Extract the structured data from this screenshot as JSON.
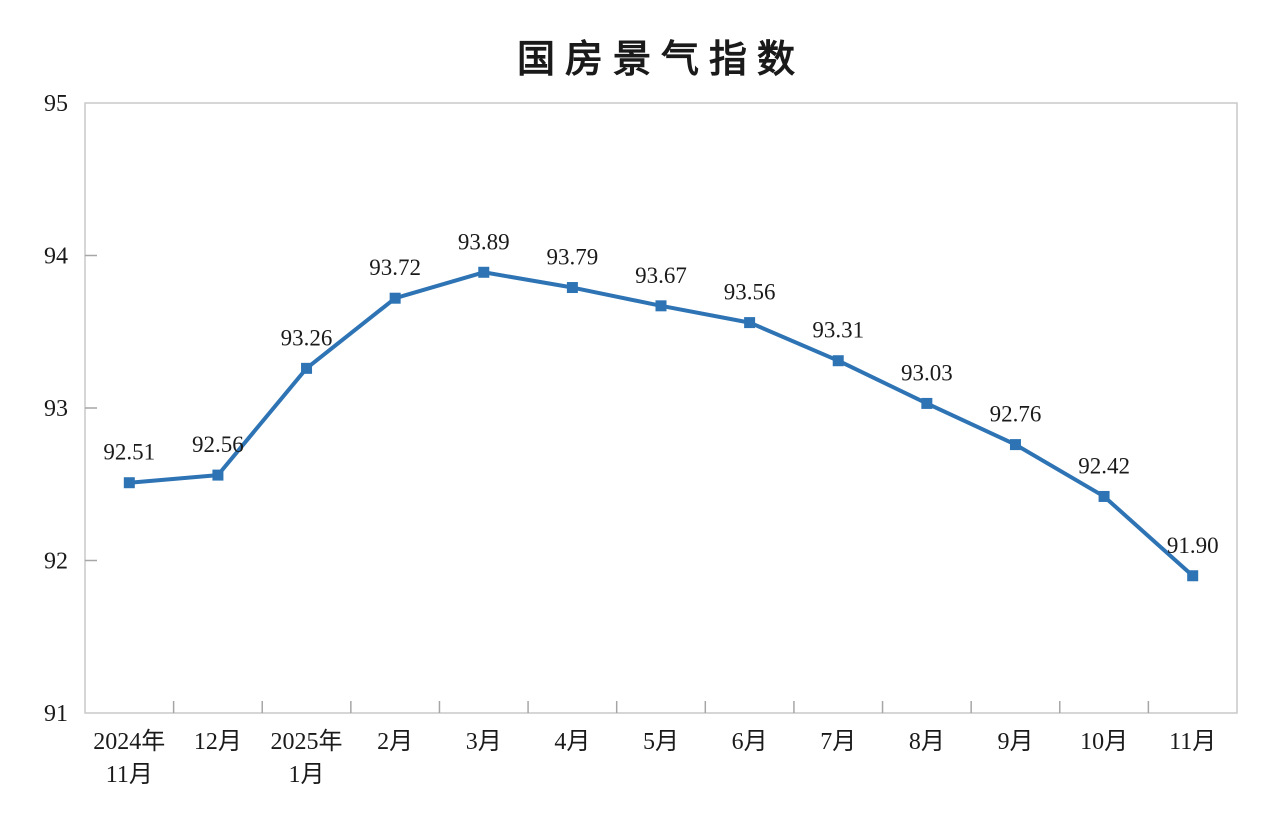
{
  "title": "国房景气指数",
  "chart_data": {
    "type": "line",
    "title": "国房景气指数",
    "categories": [
      [
        "2024年",
        "11月"
      ],
      [
        "12月"
      ],
      [
        "2025年",
        "1月"
      ],
      [
        "2月"
      ],
      [
        "3月"
      ],
      [
        "4月"
      ],
      [
        "5月"
      ],
      [
        "6月"
      ],
      [
        "7月"
      ],
      [
        "8月"
      ],
      [
        "9月"
      ],
      [
        "10月"
      ],
      [
        "11月"
      ]
    ],
    "series": [
      {
        "name": "国房景气指数",
        "values": [
          92.51,
          92.56,
          93.26,
          93.72,
          93.89,
          93.79,
          93.67,
          93.56,
          93.31,
          93.03,
          92.76,
          92.42,
          91.9
        ]
      }
    ],
    "point_labels": [
      "92.51",
      "92.56",
      "93.26",
      "93.72",
      "93.89",
      "93.79",
      "93.67",
      "93.56",
      "93.31",
      "93.03",
      "92.76",
      "92.42",
      "91.90"
    ],
    "xlabel": "",
    "ylabel": "",
    "ylim": [
      91,
      95
    ],
    "yticks": [
      91,
      92,
      93,
      94,
      95
    ],
    "grid": false,
    "legend": "none",
    "marker": "square",
    "colors": {
      "line": "#2E74B5",
      "box": "#C9C9C9",
      "tick": "#A6A6A6",
      "text": "#1a1a1a"
    }
  }
}
